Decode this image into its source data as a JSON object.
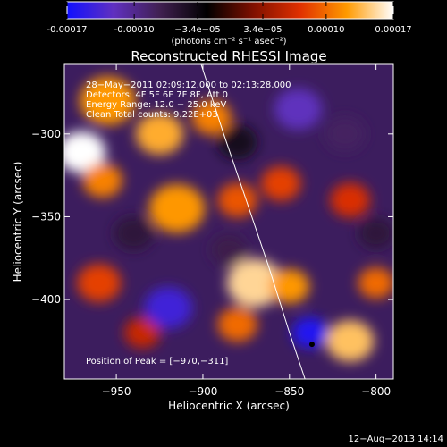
{
  "colorbar": {
    "ticks": [
      "-0.00017",
      "-0.00010",
      "−3.4e−05",
      "3.4e−05",
      "0.00010",
      "0.00017"
    ],
    "tick_values": [
      -0.00017,
      -0.0001,
      -3.4e-05,
      3.4e-05,
      0.0001,
      0.00017
    ],
    "range": [
      -0.00017,
      0.00017
    ],
    "units": "(photons cm⁻² s⁻¹ asec⁻²)",
    "colors": [
      "#1010ff",
      "#6030c0",
      "#402050",
      "#000000",
      "#801000",
      "#e03000",
      "#ff9a00",
      "#ffffff"
    ]
  },
  "chart_data": {
    "type": "heatmap",
    "title": "Reconstructed RHESSI Image",
    "xlabel": "Heliocentric X (arcsec)",
    "ylabel": "Heliocentric Y (arcsec)",
    "xlim": [
      -980,
      -790
    ],
    "ylim": [
      -448,
      -258
    ],
    "xticks": [
      -950,
      -900,
      -850,
      -800
    ],
    "yticks": [
      -300,
      -350,
      -400
    ],
    "xtick_labels": [
      "−950",
      "−900",
      "−850",
      "−800"
    ],
    "ytick_labels": [
      "−300",
      "−350",
      "−400"
    ],
    "annotations": [
      "28−May−2011 02:09:12.000 to 02:13:28.000",
      "Detectors: 4F 5F 6F 7F 8F, Att 0",
      "Energy Range: 12.0 − 25.0 keV",
      "Clean    Total counts: 9.22E+03"
    ],
    "peak_label": "Position of Peak = [−970,−311]",
    "peak_position": [
      -970,
      -311
    ],
    "marker_position": [
      -837,
      -427
    ],
    "limb_curve": [
      [
        -901,
        -258
      ],
      [
        -888,
        -300
      ],
      [
        -875,
        -340
      ],
      [
        -862,
        -380
      ],
      [
        -850,
        -420
      ],
      [
        -841,
        -448
      ]
    ],
    "intensity_blobs": [
      {
        "x": -970,
        "y": -311,
        "value": 0.00017,
        "r": 12
      },
      {
        "x": -955,
        "y": -280,
        "value": 0.00012,
        "r": 14
      },
      {
        "x": -958,
        "y": -328,
        "value": 0.00011,
        "r": 10
      },
      {
        "x": -925,
        "y": -300,
        "value": 0.00013,
        "r": 12
      },
      {
        "x": -895,
        "y": -290,
        "value": 0.00011,
        "r": 10
      },
      {
        "x": -915,
        "y": -345,
        "value": 0.00012,
        "r": 14
      },
      {
        "x": -880,
        "y": -340,
        "value": 9e-05,
        "r": 10
      },
      {
        "x": -870,
        "y": -390,
        "value": 0.00015,
        "r": 14
      },
      {
        "x": -880,
        "y": -415,
        "value": 0.0001,
        "r": 10
      },
      {
        "x": -850,
        "y": -392,
        "value": 0.00012,
        "r": 10
      },
      {
        "x": -815,
        "y": -425,
        "value": 0.00014,
        "r": 12
      },
      {
        "x": -800,
        "y": -390,
        "value": 0.0001,
        "r": 9
      },
      {
        "x": -855,
        "y": -330,
        "value": 8e-05,
        "r": 10
      },
      {
        "x": -960,
        "y": -390,
        "value": 8e-05,
        "r": 11
      },
      {
        "x": -935,
        "y": -420,
        "value": 6e-05,
        "r": 9
      },
      {
        "x": -815,
        "y": -340,
        "value": 7e-05,
        "r": 10
      },
      {
        "x": -845,
        "y": -285,
        "value": -0.00012,
        "r": 12
      },
      {
        "x": -818,
        "y": -300,
        "value": -8e-05,
        "r": 10
      },
      {
        "x": -920,
        "y": -405,
        "value": -0.00014,
        "r": 12
      },
      {
        "x": -838,
        "y": -420,
        "value": -0.00016,
        "r": 9
      },
      {
        "x": -940,
        "y": -360,
        "value": -6e-05,
        "r": 10
      },
      {
        "x": -885,
        "y": -370,
        "value": -7e-05,
        "r": 9
      },
      {
        "x": -800,
        "y": -360,
        "value": -6e-05,
        "r": 9
      },
      {
        "x": -880,
        "y": -305,
        "value": -4e-05,
        "r": 10
      }
    ]
  },
  "footer": {
    "timestamp": "12−Aug−2013 14:14"
  }
}
